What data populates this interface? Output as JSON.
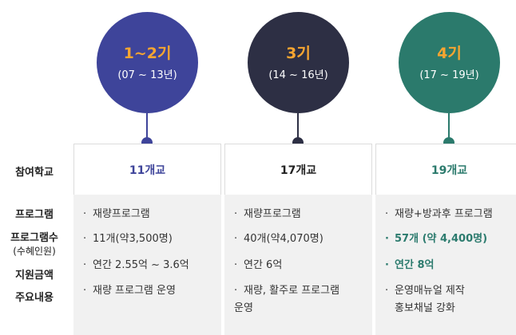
{
  "row_labels": {
    "schools": "참여학교",
    "program": "프로그램",
    "program_count": "프로그램수",
    "beneficiaries": "(수혜인원)",
    "funding": "지원금액",
    "main_content": "주요내용"
  },
  "columns": [
    {
      "generation": "1~2기",
      "years": "(07 ~ 13년)",
      "color": "#3e449a",
      "schools": "11개교",
      "items": [
        "재량프로그램",
        "11개(약3,500명)",
        "연간 2.55억 ~ 3.6억",
        "재량 프로그램 운영"
      ]
    },
    {
      "generation": "3기",
      "years": "(14 ~ 16년)",
      "color": "#2d2f44",
      "schools": "17개교",
      "items": [
        "재량프로그램",
        "40개(약4,070명)",
        "연간 6억",
        "재량, 활주로 프로그램",
        "운영"
      ]
    },
    {
      "generation": "4기",
      "years": "(17 ~ 19년)",
      "color": "#2b7a6c",
      "schools": "19개교",
      "items": [
        "재량+방과후 프로그램",
        "57개 (약 4,400명)",
        "연간 8억",
        "운영매뉴얼 제작",
        "홍보채널 강화"
      ]
    }
  ],
  "bullet": "·"
}
